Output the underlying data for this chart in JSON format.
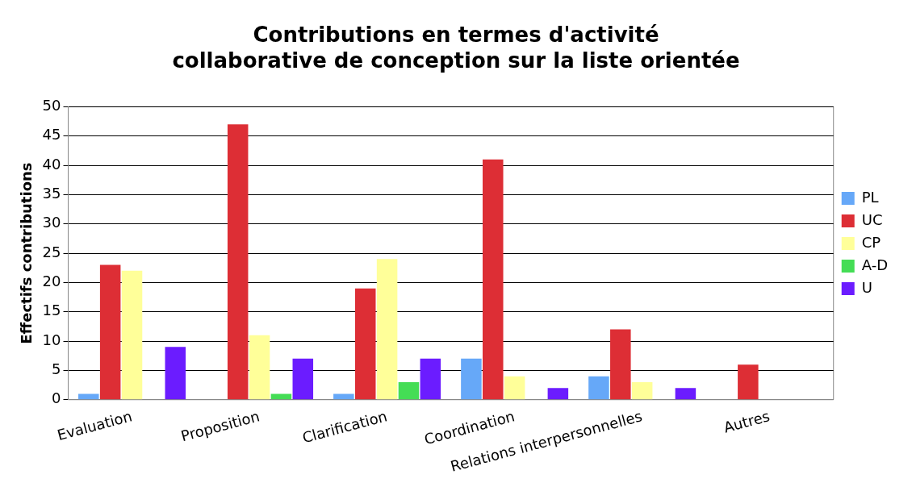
{
  "chart_data": {
    "type": "bar",
    "title": "Contributions en termes d'activité\ncollaborative de conception sur la liste orientée",
    "ylabel": "Effectifs contributions",
    "categories": [
      "Evaluation",
      "Proposition",
      "Clarification",
      "Coordination",
      "Relations interpersonnelles",
      "Autres"
    ],
    "series": [
      {
        "name": "PL",
        "color": "#66a8f8",
        "values": [
          1,
          0,
          1,
          7,
          4,
          0
        ]
      },
      {
        "name": "UC",
        "color": "#dd2e35",
        "values": [
          23,
          47,
          19,
          41,
          12,
          6
        ]
      },
      {
        "name": "CP",
        "color": "#ffff99",
        "values": [
          22,
          11,
          24,
          4,
          3,
          0
        ]
      },
      {
        "name": "A-D",
        "color": "#44dd55",
        "values": [
          0,
          1,
          3,
          0,
          0,
          0
        ]
      },
      {
        "name": "U",
        "color": "#6b1cff",
        "values": [
          9,
          7,
          7,
          2,
          2,
          0
        ]
      }
    ],
    "ylim": [
      0,
      50
    ],
    "yticks": [
      0,
      5,
      10,
      15,
      20,
      25,
      30,
      35,
      40,
      45,
      50
    ],
    "grid": "y",
    "legend": "right"
  }
}
